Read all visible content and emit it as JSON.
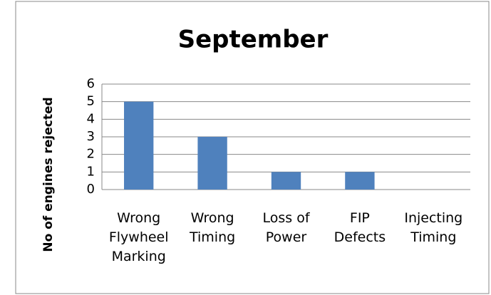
{
  "chart_data": {
    "type": "bar",
    "title": "September",
    "y_axis_label": "No of engines rejected",
    "categories": [
      "Wrong Flywheel Marking",
      "Wrong Timing",
      "Loss of Power",
      "FIP Defects",
      "Injecting Timing"
    ],
    "values": [
      5,
      3,
      1,
      1,
      0
    ],
    "color": "#4f81bd",
    "ylim": [
      0,
      6
    ],
    "yticks": [
      0,
      1,
      2,
      3,
      4,
      5,
      6
    ],
    "grid": true
  }
}
